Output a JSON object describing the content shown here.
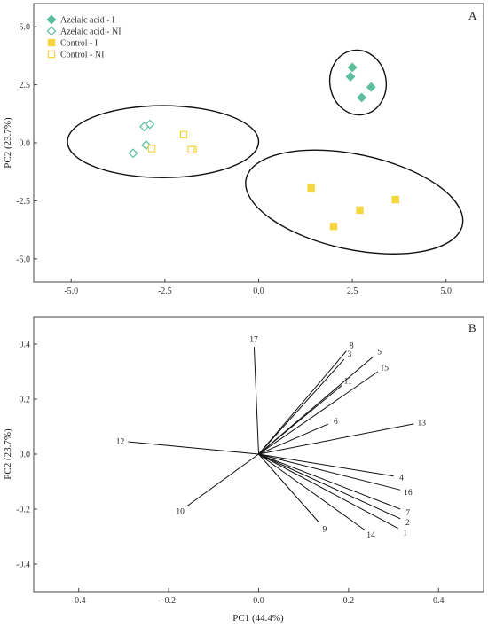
{
  "colors": {
    "azelaic": "#5bbf9b",
    "control": "#f5d63f"
  },
  "chart_data": [
    {
      "panel": "A",
      "type": "scatter",
      "xlabel": "",
      "ylabel": "PC2 (23.7%)",
      "xlim": [
        -6.0,
        6.0
      ],
      "ylim": [
        -6.0,
        6.0
      ],
      "xticks": [
        -5.0,
        -2.5,
        0.0,
        2.5,
        5.0
      ],
      "xtick_labels": [
        "-5.0",
        "-2.5",
        "0.0",
        "2.5",
        "5.0"
      ],
      "yticks": [
        -5.0,
        -2.5,
        0.0,
        2.5,
        5.0
      ],
      "ytick_labels": [
        "-5.0",
        "-2.5",
        "0.0",
        "2.5",
        "5.0"
      ],
      "legend_position": "top-left",
      "series": [
        {
          "name": "Azelaic acid - I",
          "marker": "diamond",
          "filled": true,
          "color": "#5bbf9b",
          "points": [
            [
              2.5,
              3.25
            ],
            [
              2.45,
              2.85
            ],
            [
              3.0,
              2.4
            ],
            [
              2.75,
              1.95
            ]
          ]
        },
        {
          "name": "Azelaic acid - NI",
          "marker": "diamond",
          "filled": false,
          "color": "#5bbf9b",
          "points": [
            [
              -2.9,
              0.8
            ],
            [
              -3.05,
              0.7
            ],
            [
              -3.0,
              -0.1
            ],
            [
              -3.35,
              -0.45
            ]
          ]
        },
        {
          "name": "Control - I",
          "marker": "square",
          "filled": true,
          "color": "#f5d63f",
          "points": [
            [
              1.4,
              -1.95
            ],
            [
              3.65,
              -2.45
            ],
            [
              2.7,
              -2.9
            ],
            [
              2.0,
              -3.6
            ]
          ]
        },
        {
          "name": "Control - NI",
          "marker": "square",
          "filled": false,
          "color": "#f5d63f",
          "points": [
            [
              -2.0,
              0.35
            ],
            [
              -2.85,
              -0.25
            ],
            [
              -1.75,
              -0.3
            ],
            [
              -1.8,
              -0.3
            ]
          ]
        }
      ],
      "ellipses": [
        {
          "center": [
            2.65,
            2.6
          ],
          "rx": 0.75,
          "ry": 1.4,
          "rotation_deg": -10
        },
        {
          "center": [
            -2.55,
            0.05
          ],
          "rx": 2.55,
          "ry": 1.55,
          "rotation_deg": 0
        },
        {
          "center": [
            2.55,
            -2.55
          ],
          "rx": 2.95,
          "ry": 2.05,
          "rotation_deg": 12
        }
      ]
    },
    {
      "panel": "B",
      "type": "biplot",
      "xlabel": "PC1 (44.4%)",
      "ylabel": "PC2 (23.7%)",
      "xlim": [
        -0.5,
        0.5
      ],
      "ylim": [
        -0.5,
        0.5
      ],
      "xticks": [
        -0.4,
        -0.2,
        0.0,
        0.2,
        0.4
      ],
      "xtick_labels": [
        "-0.4",
        "-0.2",
        "0.0",
        "0.2",
        "0.4"
      ],
      "yticks": [
        -0.4,
        -0.2,
        0.0,
        0.2,
        0.4
      ],
      "ytick_labels": [
        "-0.4",
        "-0.2",
        "0.0",
        "0.2",
        "0.4"
      ],
      "vectors": [
        {
          "label": "1",
          "x": 0.31,
          "y": -0.27
        },
        {
          "label": "2",
          "x": 0.315,
          "y": -0.235
        },
        {
          "label": "3",
          "x": 0.19,
          "y": 0.345
        },
        {
          "label": "4",
          "x": 0.3,
          "y": -0.08
        },
        {
          "label": "5",
          "x": 0.255,
          "y": 0.355
        },
        {
          "label": "6",
          "x": 0.155,
          "y": 0.11
        },
        {
          "label": "7",
          "x": 0.315,
          "y": -0.2
        },
        {
          "label": "8",
          "x": 0.195,
          "y": 0.375
        },
        {
          "label": "9",
          "x": 0.135,
          "y": -0.25
        },
        {
          "label": "10",
          "x": -0.16,
          "y": -0.19
        },
        {
          "label": "11",
          "x": 0.185,
          "y": 0.25
        },
        {
          "label": "12",
          "x": -0.29,
          "y": 0.045
        },
        {
          "label": "13",
          "x": 0.345,
          "y": 0.11
        },
        {
          "label": "14",
          "x": 0.235,
          "y": -0.275
        },
        {
          "label": "15",
          "x": 0.265,
          "y": 0.3
        },
        {
          "label": "16",
          "x": 0.315,
          "y": -0.13
        },
        {
          "label": "17",
          "x": -0.01,
          "y": 0.39
        }
      ]
    }
  ]
}
